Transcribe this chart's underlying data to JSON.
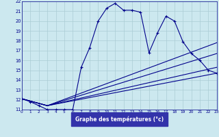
{
  "xlabel": "Graphe des températures (°c)",
  "ylim": [
    11,
    22
  ],
  "xlim": [
    0,
    23
  ],
  "yticks": [
    11,
    12,
    13,
    14,
    15,
    16,
    17,
    18,
    19,
    20,
    21,
    22
  ],
  "xticks": [
    0,
    1,
    2,
    3,
    4,
    5,
    6,
    7,
    8,
    9,
    10,
    11,
    12,
    13,
    14,
    15,
    16,
    17,
    18,
    19,
    20,
    21,
    22,
    23
  ],
  "bg_color": "#cce8ef",
  "line_color": "#00008b",
  "grid_color": "#aaccd4",
  "xlabel_bg": "#3333aa",
  "xlabel_fg": "#ffffff",
  "series": [
    {
      "x": [
        0,
        1,
        2,
        3,
        4,
        5,
        6,
        7,
        8,
        9,
        10,
        11,
        12,
        13,
        14,
        15,
        16,
        17,
        18,
        19,
        20,
        21,
        22,
        23
      ],
      "y": [
        12.1,
        11.8,
        11.4,
        11.0,
        11.0,
        11.0,
        11.0,
        15.3,
        17.3,
        20.0,
        21.3,
        21.8,
        21.1,
        21.1,
        20.9,
        16.8,
        18.8,
        20.5,
        20.0,
        17.9,
        16.7,
        16.0,
        15.0,
        14.7
      ],
      "marker": true
    },
    {
      "x": [
        0,
        3,
        23
      ],
      "y": [
        12.1,
        11.4,
        14.7
      ],
      "marker": false
    },
    {
      "x": [
        0,
        3,
        23
      ],
      "y": [
        12.1,
        11.4,
        15.3
      ],
      "marker": false
    },
    {
      "x": [
        0,
        3,
        23
      ],
      "y": [
        12.1,
        11.4,
        16.7
      ],
      "marker": false
    },
    {
      "x": [
        0,
        3,
        23
      ],
      "y": [
        12.1,
        11.4,
        17.8
      ],
      "marker": false
    }
  ]
}
